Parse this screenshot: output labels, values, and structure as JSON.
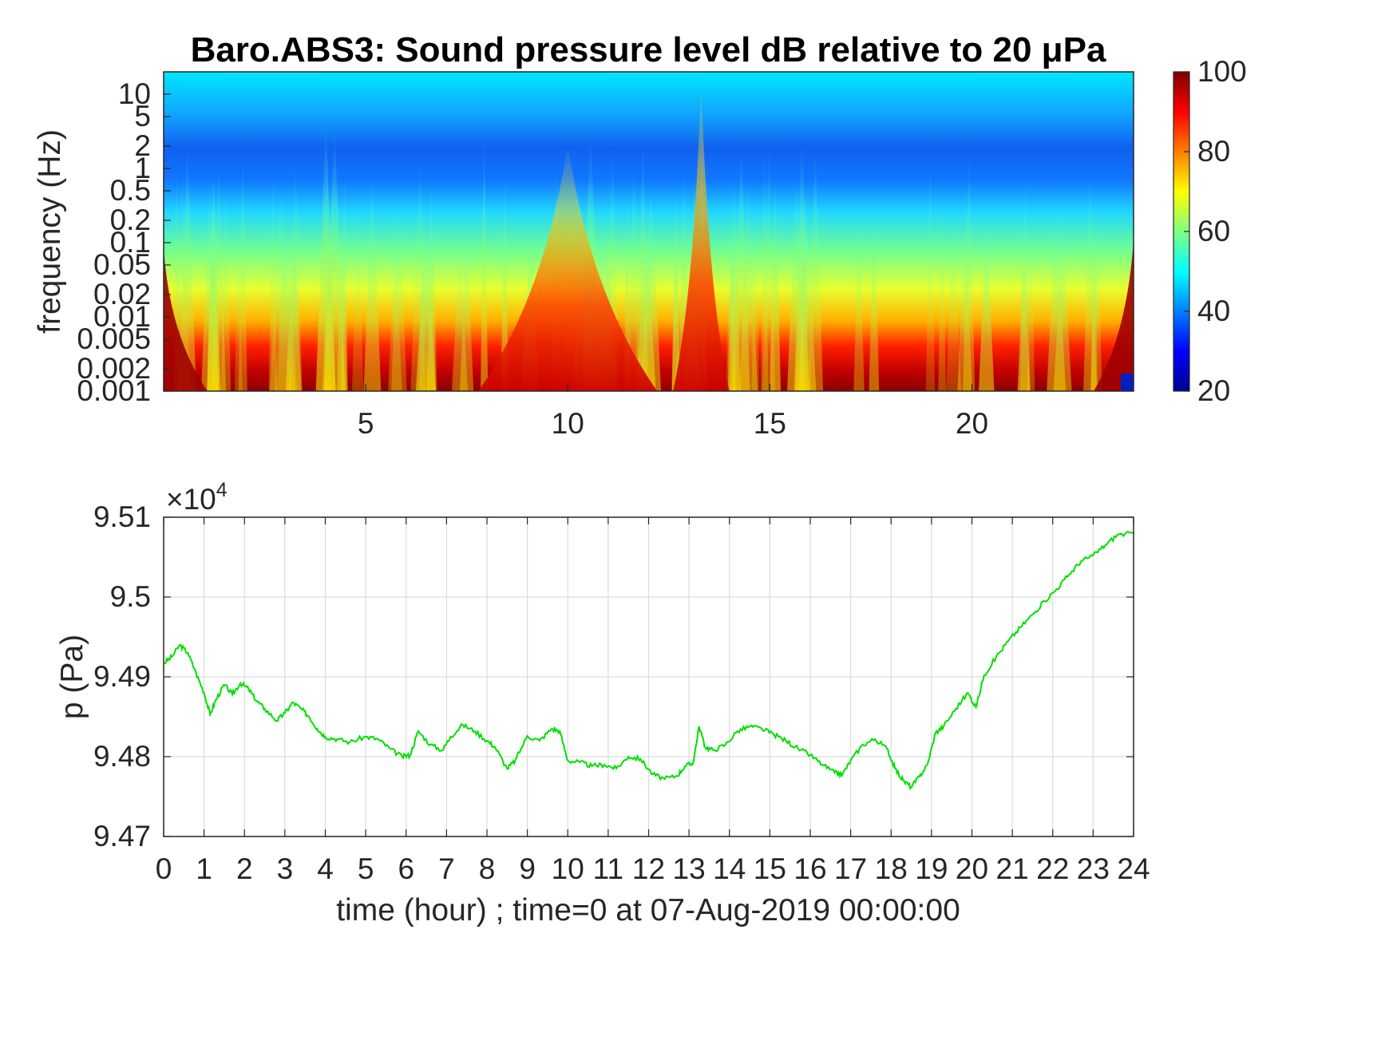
{
  "chart_data": [
    {
      "type": "heatmap",
      "title": "Baro.ABS3: Sound pressure level dB relative to 20 μPa",
      "xlabel": "",
      "ylabel": "frequency (Hz)",
      "x_tick_labels": [
        "5",
        "10",
        "15",
        "20"
      ],
      "x_ticks": [
        5,
        10,
        15,
        20
      ],
      "xlim": [
        0,
        24
      ],
      "y_scale": "log",
      "ylim": [
        0.001,
        20
      ],
      "y_tick_labels": [
        "0.001",
        "0.002",
        "0.005",
        "0.01",
        "0.02",
        "0.05",
        "0.1",
        "0.2",
        "0.5",
        "1",
        "2",
        "5",
        "10"
      ],
      "y_ticks": [
        0.001,
        0.002,
        0.005,
        0.01,
        0.02,
        0.05,
        0.1,
        0.2,
        0.5,
        1,
        2,
        5,
        10
      ],
      "colormap": "jet",
      "colorbar": {
        "min": 20,
        "max": 100,
        "tick_labels": [
          "20",
          "40",
          "60",
          "80",
          "100"
        ],
        "ticks": [
          20,
          40,
          60,
          80,
          100
        ]
      },
      "features": {
        "high_energy_bursts_hour": [
          10,
          13.3
        ],
        "band_low_frequency_dB": 90,
        "band_high_frequency_dB": 50
      },
      "grid": false
    },
    {
      "type": "line",
      "title": "",
      "xlabel": "time (hour) ; time=0 at 07-Aug-2019 00:00:00",
      "ylabel": "p (Pa)",
      "y_exponent_label": "×10",
      "y_exponent_power": "4",
      "xlim": [
        0,
        24
      ],
      "ylim": [
        94700,
        95100
      ],
      "x_tick_labels": [
        "0",
        "1",
        "2",
        "3",
        "4",
        "5",
        "6",
        "7",
        "8",
        "9",
        "10",
        "11",
        "12",
        "13",
        "14",
        "15",
        "16",
        "17",
        "18",
        "19",
        "20",
        "21",
        "22",
        "23",
        "24"
      ],
      "y_tick_labels": [
        "9.47",
        "9.48",
        "9.49",
        "9.5",
        "9.51"
      ],
      "y_ticks": [
        94700,
        94800,
        94900,
        95000,
        95100
      ],
      "grid": true,
      "series": [
        {
          "color": "#00e000",
          "x": [
            0,
            0.2,
            0.4,
            0.6,
            0.8,
            1.0,
            1.15,
            1.3,
            1.5,
            1.7,
            1.9,
            2.1,
            2.3,
            2.5,
            2.8,
            3.0,
            3.2,
            3.4,
            3.6,
            3.8,
            4.0,
            4.3,
            4.6,
            5.0,
            5.3,
            5.6,
            5.9,
            6.1,
            6.3,
            6.6,
            6.9,
            7.1,
            7.4,
            7.7,
            8.0,
            8.2,
            8.5,
            8.7,
            9.0,
            9.3,
            9.6,
            9.8,
            10.0,
            10.3,
            10.6,
            10.9,
            11.2,
            11.5,
            11.8,
            12.1,
            12.4,
            12.7,
            12.9,
            13.1,
            13.25,
            13.4,
            13.6,
            13.9,
            14.2,
            14.5,
            14.8,
            15.1,
            15.4,
            15.7,
            16.0,
            16.3,
            16.6,
            16.8,
            17.0,
            17.3,
            17.6,
            17.9,
            18.1,
            18.3,
            18.5,
            18.7,
            18.9,
            19.1,
            19.3,
            19.6,
            19.9,
            20.1,
            20.3,
            20.6,
            20.9,
            21.2,
            21.5,
            21.8,
            22.1,
            22.4,
            22.7,
            23.0,
            23.3,
            23.6,
            24.0
          ],
          "y": [
            94917,
            94925,
            94940,
            94930,
            94905,
            94880,
            94853,
            94872,
            94890,
            94878,
            94892,
            94885,
            94870,
            94860,
            94845,
            94855,
            94868,
            94860,
            94850,
            94835,
            94825,
            94822,
            94818,
            94825,
            94822,
            94810,
            94800,
            94802,
            94832,
            94815,
            94808,
            94825,
            94840,
            94832,
            94820,
            94812,
            94785,
            94795,
            94826,
            94820,
            94835,
            94832,
            94795,
            94793,
            94788,
            94790,
            94785,
            94800,
            94797,
            94778,
            94772,
            94776,
            94788,
            94792,
            94838,
            94812,
            94808,
            94815,
            94832,
            94838,
            94835,
            94828,
            94820,
            94810,
            94802,
            94790,
            94780,
            94778,
            94795,
            94815,
            94822,
            94810,
            94785,
            94770,
            94762,
            94775,
            94790,
            94830,
            94838,
            94860,
            94880,
            94862,
            94902,
            94925,
            94945,
            94962,
            94978,
            94995,
            95010,
            95028,
            95045,
            95052,
            95065,
            95078,
            95080
          ]
        }
      ]
    }
  ]
}
